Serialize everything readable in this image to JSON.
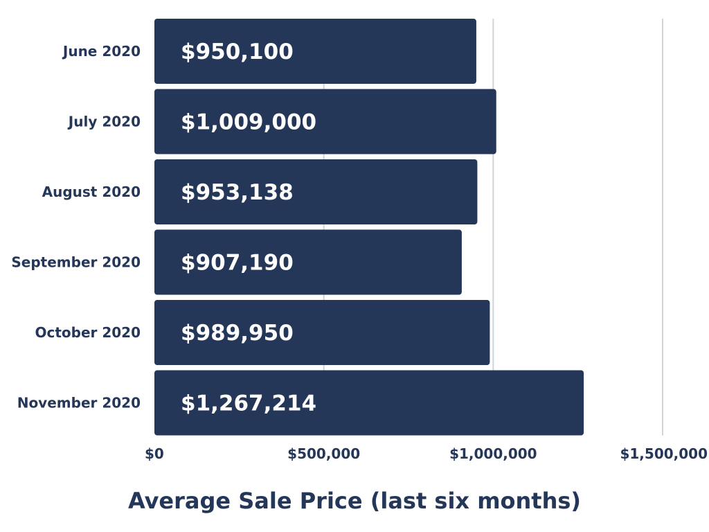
{
  "chart_data": {
    "type": "bar",
    "orientation": "horizontal",
    "title": "Average Sale Price (last six months)",
    "xlabel": "",
    "ylabel": "",
    "categories": [
      "June 2020",
      "July 2020",
      "August 2020",
      "September 2020",
      "October 2020",
      "November 2020"
    ],
    "values": [
      950100,
      1009000,
      953138,
      907190,
      989950,
      1267214
    ],
    "value_labels": [
      "$950,100",
      "$1,009,000",
      "$953,138",
      "$907,190",
      "$989,950",
      "$1,267,214"
    ],
    "xlim": [
      0,
      1500000
    ],
    "ticks": [
      0,
      500000,
      1000000,
      1500000
    ],
    "tick_labels": [
      "$0",
      "$500,000",
      "$1,000,000",
      "$1,500,000"
    ],
    "grid": true,
    "legend": "none",
    "colors": {
      "bar": "#243759",
      "bar_text": "#ffffff",
      "label_text": "#243759",
      "grid": "#cfd3da",
      "background": "#ffffff"
    }
  }
}
